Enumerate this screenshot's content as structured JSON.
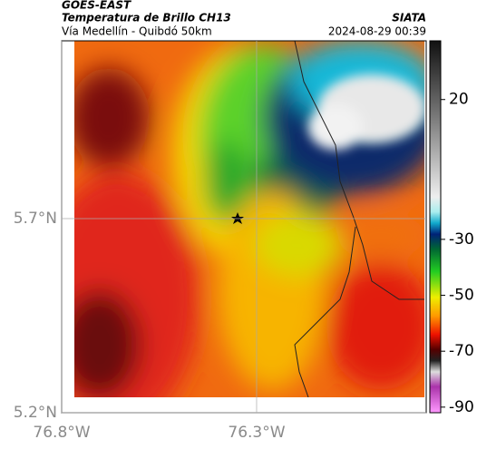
{
  "header": {
    "source": "GOES-EAST",
    "title": "Temperatura de Brillo CH13",
    "subtitle": "Vía Medellín - Quibdó 50km",
    "org": "SIATA",
    "datetime": "2024-08-29 00:39"
  },
  "map": {
    "lon_lim": [
      -76.8,
      -75.865
    ],
    "lat_lim": [
      5.2,
      6.158
    ],
    "lon_ticks": [
      {
        "value": -76.8,
        "label": "76.8°W"
      },
      {
        "value": -76.3,
        "label": "76.3°W"
      }
    ],
    "lat_ticks": [
      {
        "value": 5.7,
        "label": "5.7°N"
      },
      {
        "value": 5.2,
        "label": "5.2°N"
      }
    ]
  },
  "colorbar": {
    "lim": [
      -92,
      41
    ],
    "ticks": [
      20,
      -30,
      -50,
      -70,
      -90
    ]
  }
}
